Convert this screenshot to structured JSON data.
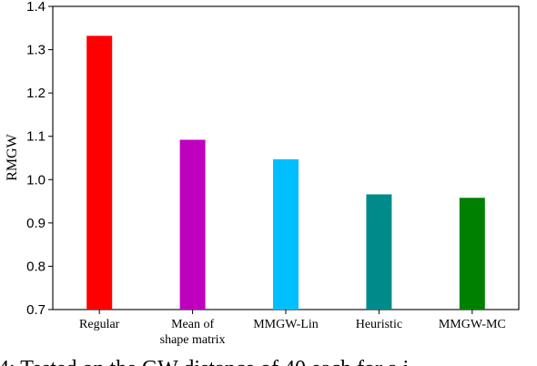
{
  "chart_data": {
    "type": "bar",
    "categories": [
      [
        "Regular"
      ],
      [
        "Mean of",
        "shape matrix"
      ],
      [
        "MMGW-Lin"
      ],
      [
        "Heuristic"
      ],
      [
        "MMGW-MC"
      ]
    ],
    "values": [
      1.332,
      1.092,
      1.047,
      0.966,
      0.958
    ],
    "colors": [
      "#ff0000",
      "#bf00bf",
      "#00bfff",
      "#008b8b",
      "#008000"
    ],
    "ylabel": "RMGW",
    "xlabel": "",
    "title": "",
    "ylim": [
      0.7,
      1.4
    ],
    "yticks": [
      "0.7",
      "0.8",
      "0.9",
      "1.0",
      "1.1",
      "1.2",
      "1.3",
      "1.4"
    ],
    "grid": false
  },
  "caption_fragment": "4: Tested on the GW distance of 40 each for a i"
}
